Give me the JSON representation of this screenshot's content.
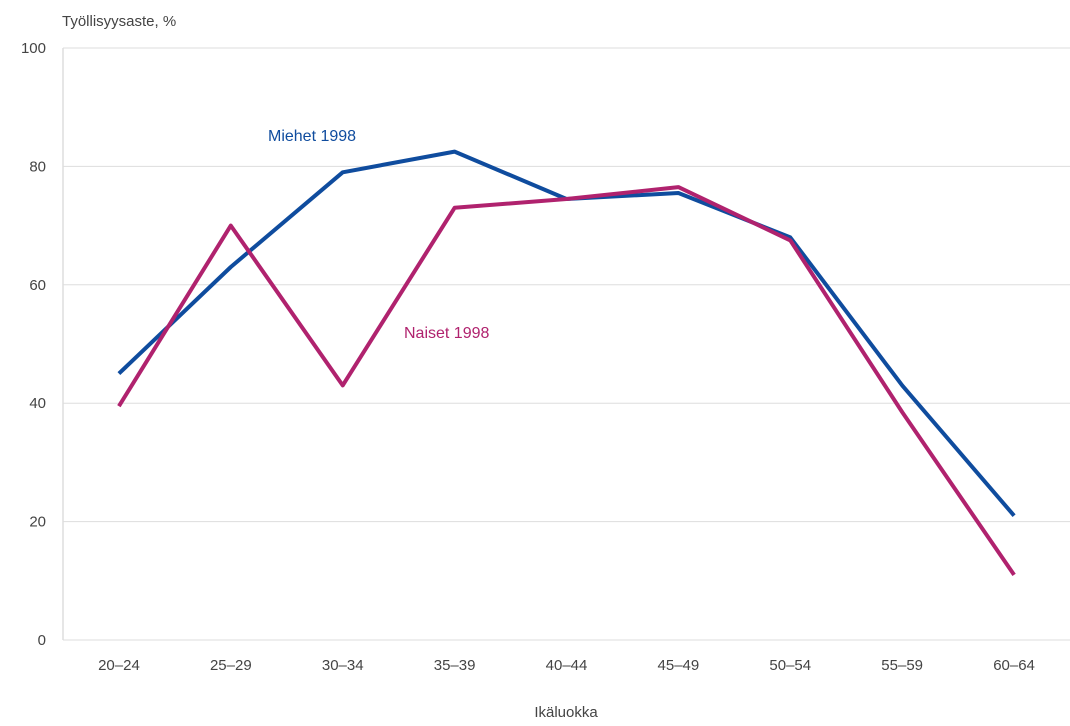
{
  "chart_data": {
    "type": "line",
    "title": "",
    "ylabel": "Työllisyysaste, %",
    "xlabel": "Ikäluokka",
    "ylim": [
      0,
      100
    ],
    "yticks": [
      0,
      20,
      40,
      60,
      80,
      100
    ],
    "grid": true,
    "categories": [
      "20–24",
      "25–29",
      "30–34",
      "35–39",
      "40–44",
      "45–49",
      "50–54",
      "55–59",
      "60–64"
    ],
    "series": [
      {
        "name": "Miehet 1998",
        "color": "#0f4c9e",
        "values": [
          45,
          63,
          79,
          82.5,
          74.5,
          75.5,
          68,
          43,
          21
        ]
      },
      {
        "name": "Naiset 1998",
        "color": "#b0226e",
        "values": [
          39.5,
          70,
          43,
          73,
          74.5,
          76.5,
          67.5,
          38.5,
          11
        ]
      }
    ]
  }
}
